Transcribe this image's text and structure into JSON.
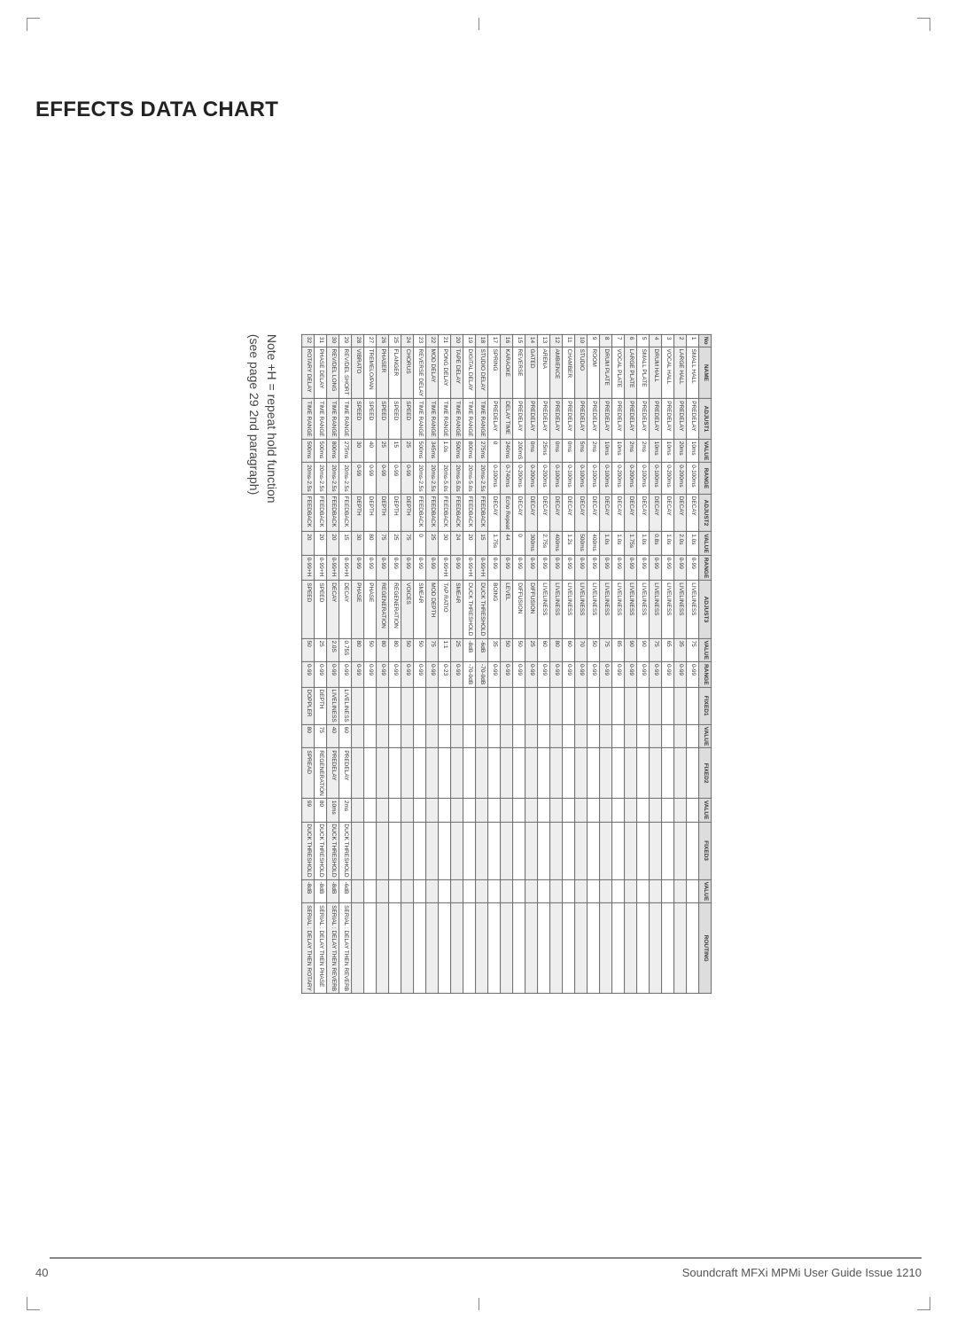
{
  "title": "EFFECTS DATA CHART",
  "footer_page": "40",
  "footer_text": "Soundcraft MFXi MPMi User Guide Issue 1210",
  "note_line1": "Note +H = repeat hold function",
  "note_line2": "(see page 29 2nd paragraph)",
  "columns": [
    "No",
    "NAME",
    "ADJUST1",
    "VALUE",
    "RANGE",
    "ADJUST2",
    "VALUE",
    "RANGE",
    "ADJUST3",
    "VALUE",
    "RANGE",
    "FIXED1",
    "VALUE",
    "FIXED2",
    "VALUE",
    "FIXED3",
    "VALUE",
    "ROUTING"
  ],
  "rows": [
    [
      "1",
      "SMALL HALL",
      "PREDELAY",
      "10ms",
      "0-100ms",
      "DECAY",
      "1.0s",
      "0-99",
      "LIVELINESS",
      "75",
      "0-99",
      "",
      "",
      "",
      "",
      "",
      "",
      ""
    ],
    [
      "2",
      "LARGE HALL",
      "PREDELAY",
      "20ms",
      "0-200ms",
      "DECAY",
      "2.0s",
      "0-99",
      "LIVELINESS",
      "35",
      "0-99",
      "",
      "",
      "",
      "",
      "",
      "",
      ""
    ],
    [
      "3",
      "VOCAL HALL",
      "PREDELAY",
      "10ms",
      "0-200ms",
      "DECAY",
      "1.0s",
      "0-99",
      "LIVELINESS",
      "65",
      "0-99",
      "",
      "",
      "",
      "",
      "",
      "",
      ""
    ],
    [
      "4",
      "DRUM HALL",
      "PREDELAY",
      "10ms",
      "0-100ms",
      "DECAY",
      "0.8s",
      "0-99",
      "LIVELINESS",
      "75",
      "0-99",
      "",
      "",
      "",
      "",
      "",
      "",
      ""
    ],
    [
      "5",
      "SMALL PLATE",
      "PREDELAY",
      "2ms",
      "0-100ms",
      "DECAY",
      "1.0s",
      "0-99",
      "LIVELINESS",
      "90",
      "0-99",
      "",
      "",
      "",
      "",
      "",
      "",
      ""
    ],
    [
      "6",
      "LARGE PLATE",
      "PREDELAY",
      "2ms",
      "0-200ms",
      "DECAY",
      "1.75s",
      "0-99",
      "LIVELINESS",
      "90",
      "0-99",
      "",
      "",
      "",
      "",
      "",
      "",
      ""
    ],
    [
      "7",
      "VOCAL PLATE",
      "PREDELAY",
      "10ms",
      "0-200ms",
      "DECAY",
      "1.0s",
      "0-99",
      "LIVELINESS",
      "85",
      "0-99",
      "",
      "",
      "",
      "",
      "",
      "",
      ""
    ],
    [
      "8",
      "DRUM PLATE",
      "PREDELAY",
      "10ms",
      "0-100ms",
      "DECAY",
      "1.0s",
      "0-99",
      "LIVELINESS",
      "75",
      "0-99",
      "",
      "",
      "",
      "",
      "",
      "",
      ""
    ],
    [
      "9",
      "ROOM",
      "PREDELAY",
      "2ms",
      "0-100ms",
      "DECAY",
      "400ms",
      "0-99",
      "LIVELINESS",
      "50",
      "0-99",
      "",
      "",
      "",
      "",
      "",
      "",
      ""
    ],
    [
      "10",
      "STUDIO",
      "PREDELAY",
      "5ms",
      "0-100ms",
      "DECAY",
      "500ms",
      "0-99",
      "LIVELINESS",
      "70",
      "0-99",
      "",
      "",
      "",
      "",
      "",
      "",
      ""
    ],
    [
      "11",
      "CHAMBER",
      "PREDELAY",
      "0ms",
      "0-100ms",
      "DECAY",
      "1.2s",
      "0-99",
      "LIVELINESS",
      "60",
      "0-99",
      "",
      "",
      "",
      "",
      "",
      "",
      ""
    ],
    [
      "12",
      "AMBIENCE",
      "PREDELAY",
      "0ms",
      "0-100ms",
      "DECAY",
      "400ms",
      "0-99",
      "LIVELINESS",
      "80",
      "0-99",
      "",
      "",
      "",
      "",
      "",
      "",
      ""
    ],
    [
      "13",
      "ARENA",
      "PREDELAY",
      "25ms",
      "0-200ms",
      "DECAY",
      "2.75s",
      "0-99",
      "LIVELINESS",
      "60",
      "0-99",
      "",
      "",
      "",
      "",
      "",
      "",
      ""
    ],
    [
      "14",
      "GATED",
      "PREDELAY",
      "0ms",
      "0-200ms",
      "DECAY",
      "300ms",
      "0-99",
      "DIFFUSION",
      "25",
      "0-99",
      "",
      "",
      "",
      "",
      "",
      "",
      ""
    ],
    [
      "15",
      "REVERSE",
      "PREDELAY",
      "200mS",
      "0-200ms",
      "DECAY",
      "0",
      "0-99",
      "DIFFUSION",
      "50",
      "0-99",
      "",
      "",
      "",
      "",
      "",
      "",
      ""
    ],
    [
      "16",
      "KARAOKE",
      "DELAY TIME",
      "240ms",
      "0-740ms",
      "Echo Repeat",
      "44",
      "0-99",
      "LEVEL",
      "50",
      "0-99",
      "",
      "",
      "",
      "",
      "",
      "",
      ""
    ],
    [
      "17",
      "SPRING",
      "PREDELAY",
      "0",
      "0-100ms",
      "DECAY",
      "1.75s",
      "0-99",
      "BOING",
      "35",
      "0-99",
      "",
      "",
      "",
      "",
      "",
      "",
      ""
    ],
    [
      "18",
      "STUDIO DELAY",
      "TIME RANGE",
      "275ms",
      "20ms-2.5s",
      "FEEDBACK",
      "15",
      "0-99+H",
      "DUCK THRESHOLD",
      "-6dB",
      "-70-0dB",
      "",
      "",
      "",
      "",
      "",
      "",
      ""
    ],
    [
      "19",
      "DIGITAL DELAY",
      "TIME RANGE",
      "800ms",
      "20ms-5.0s",
      "FEEDBACK",
      "20",
      "0-99+H",
      "DUCK THRESHOLD",
      "-8dB",
      "-70-0dB",
      "",
      "",
      "",
      "",
      "",
      "",
      ""
    ],
    [
      "20",
      "TAPE DELAY",
      "TIME RANGE",
      "500ms",
      "20ms-5.0s",
      "FEEDBACK",
      "24",
      "0-99",
      "SMEAR",
      "25",
      "0-99",
      "",
      "",
      "",
      "",
      "",
      "",
      ""
    ],
    [
      "21",
      "PONG DELAY",
      "TIME RANGE",
      "1.0s",
      "20ms-5.0s",
      "FEEDBACK",
      "30",
      "0-99+H",
      "TAP RATIO",
      "1:1",
      "0-23",
      "",
      "",
      "",
      "",
      "",
      "",
      ""
    ],
    [
      "22",
      "MOD DELAY",
      "TIME RANGE",
      "345ms",
      "20ms-2.5s",
      "FEEDBACK",
      "25",
      "0-99",
      "MOD DEPTH",
      "75",
      "0-99",
      "",
      "",
      "",
      "",
      "",
      "",
      ""
    ],
    [
      "23",
      "REVERSE DELAY",
      "TIME RANGE",
      "500ms",
      "20ms-2.5s",
      "FEEDBACK",
      "0",
      "0-99",
      "SMEAR",
      "50",
      "0-99",
      "",
      "",
      "",
      "",
      "",
      "",
      ""
    ],
    [
      "24",
      "CHORUS",
      "SPEED",
      "25",
      "0-99",
      "DEPTH",
      "75",
      "0-99",
      "VOICES",
      "50",
      "0-99",
      "",
      "",
      "",
      "",
      "",
      "",
      ""
    ],
    [
      "25",
      "FLANGER",
      "SPEED",
      "15",
      "0-99",
      "DEPTH",
      "25",
      "0-99",
      "REGENERATION",
      "80",
      "0-99",
      "",
      "",
      "",
      "",
      "",
      "",
      ""
    ],
    [
      "26",
      "PHASER",
      "SPEED",
      "25",
      "0-99",
      "DEPTH",
      "75",
      "0-99",
      "REGENERATION",
      "80",
      "0-99",
      "",
      "",
      "",
      "",
      "",
      "",
      ""
    ],
    [
      "27",
      "TREMELO/PAN",
      "SPEED",
      "40",
      "0-99",
      "DEPTH",
      "80",
      "0-99",
      "PHASE",
      "50",
      "0-99",
      "",
      "",
      "",
      "",
      "",
      "",
      ""
    ],
    [
      "28",
      "VIBRATO",
      "SPEED",
      "30",
      "0-99",
      "DEPTH",
      "30",
      "0-99",
      "PHASE",
      "80",
      "0-99",
      "",
      "",
      "",
      "",
      "",
      "",
      ""
    ],
    [
      "29",
      "REV/DEL SHORT",
      "TIME RANGE",
      "275ms",
      "20ms-2.5s",
      "FEEDBACK",
      "15",
      "0-99+H",
      "DECAY",
      "0.75S",
      "0-99",
      "LIVELINESS",
      "60",
      "PREDELAY",
      "2ms",
      "DUCK THRESHOLD",
      "-6dB",
      "SERIAL : DELAY THEN REVERB"
    ],
    [
      "30",
      "REV/DEL LONG",
      "TIME RANGE",
      "800ms",
      "20ms-2.5s",
      "FEEDBACK",
      "20",
      "0-99+H",
      "DECAY",
      "2.0S",
      "0-99",
      "LIVELINESS",
      "40",
      "PREDELAY",
      "10ms",
      "DUCK THRESHOLD",
      "-8dB",
      "SERIAL : DELAY THEN REVERB"
    ],
    [
      "31",
      "PHASE DELAY",
      "TIME RANGE",
      "500ms",
      "20ms-2.5s",
      "FEEDBACK",
      "20",
      "0-99+H",
      "SPEED",
      "25",
      "0-99",
      "DEPTH",
      "75",
      "REGENERATION",
      "80",
      "DUCK THRESHOLD",
      "-8dB",
      "SERIAL : DELAY THEN PHASE"
    ],
    [
      "32",
      "ROTARY DELAY",
      "TIME RANGE",
      "500ms",
      "20ms-2.5s",
      "FEEDBACK",
      "20",
      "0-99+H",
      "SPEED",
      "50",
      "0-99",
      "DOPPLER",
      "80",
      "SPREAD",
      "99",
      "DUCK THRESHOLD",
      "-8dB",
      "SERIAL : DELAY THEN ROTARY"
    ]
  ],
  "col_classes": [
    "col-no",
    "col-name",
    "col-adj",
    "col-val",
    "col-rng",
    "col-adj",
    "col-val",
    "col-rng",
    "col-adj",
    "col-val",
    "col-rng",
    "col-fix",
    "col-val",
    "col-fix",
    "col-val",
    "col-fix",
    "col-val",
    "col-route"
  ]
}
